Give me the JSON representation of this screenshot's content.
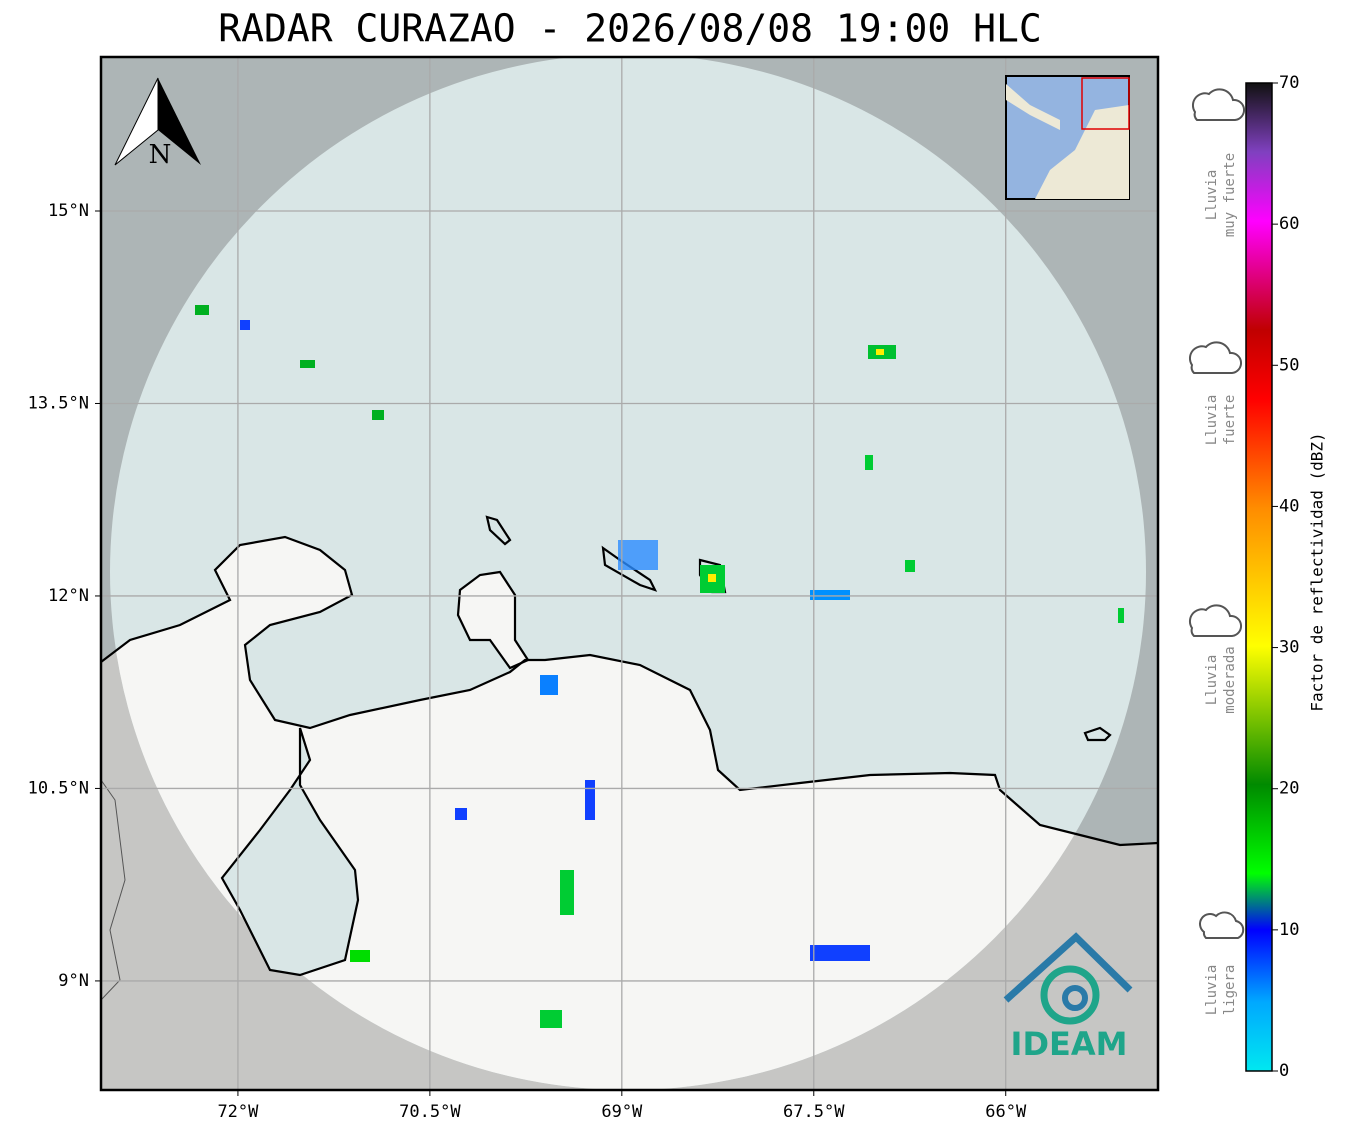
{
  "title": "RADAR CURAZAO - 2026/08/08 19:00 HLC",
  "map": {
    "lonlim": [
      -73.07,
      -64.81
    ],
    "latlim": [
      8.15,
      16.2
    ],
    "lon_ticks": [
      {
        "value": -72,
        "label": "72°W"
      },
      {
        "value": -70.5,
        "label": "70.5°W"
      },
      {
        "value": -69,
        "label": "69°W"
      },
      {
        "value": -67.5,
        "label": "67.5°W"
      },
      {
        "value": -66,
        "label": "66°W"
      }
    ],
    "lat_ticks": [
      {
        "value": 15,
        "label": "15°N"
      },
      {
        "value": 13.5,
        "label": "13.5°N"
      },
      {
        "value": 12,
        "label": "12°N"
      },
      {
        "value": 10.5,
        "label": "10.5°N"
      },
      {
        "value": 9,
        "label": "9°N"
      }
    ],
    "north_label": "N",
    "logo": "IDEAM"
  },
  "colorbar": {
    "label": "Factor de reflectividad (dBZ)",
    "lim": [
      0,
      70
    ],
    "ticks": [
      0,
      10,
      20,
      30,
      40,
      50,
      60,
      70
    ]
  },
  "legend": [
    {
      "lines": [
        "Lluvia",
        "muy fuerte"
      ]
    },
    {
      "lines": [
        "Lluvia",
        "fuerte"
      ]
    },
    {
      "lines": [
        "Lluvia",
        "moderada"
      ]
    },
    {
      "lines": [
        "Lluvia",
        "ligera"
      ]
    }
  ]
}
